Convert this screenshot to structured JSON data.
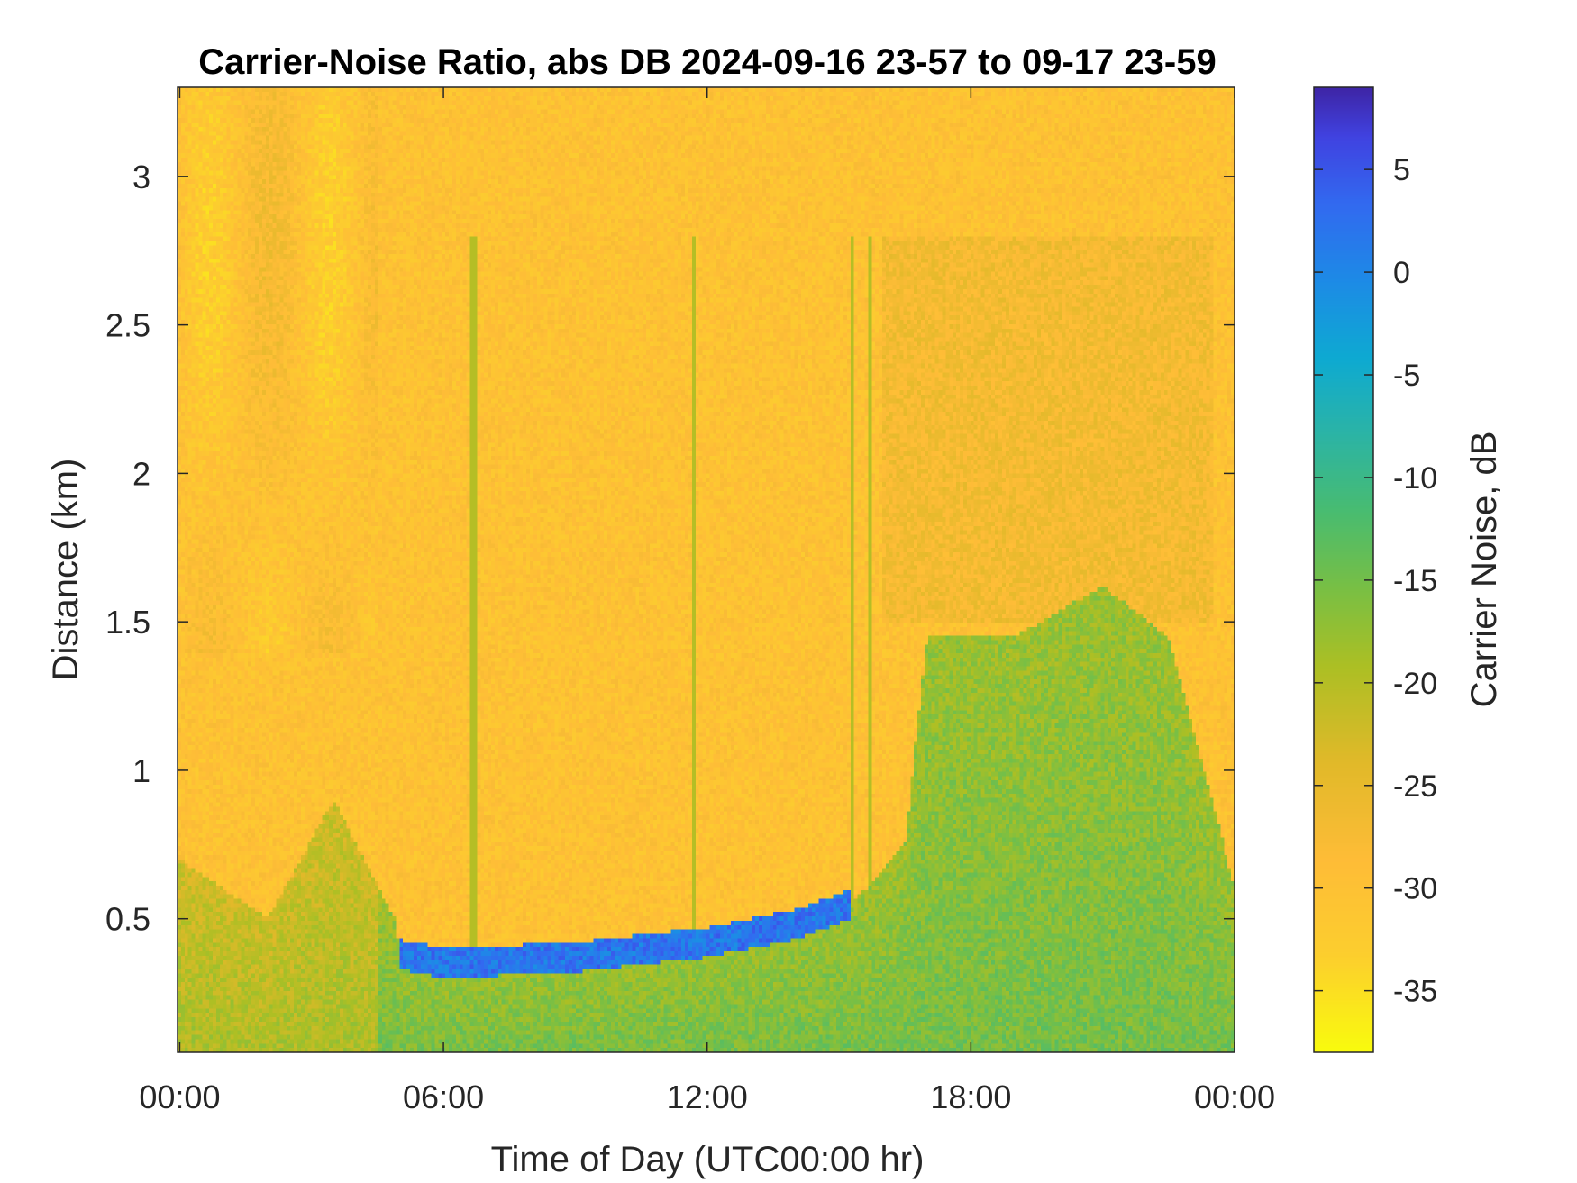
{
  "chart_data": {
    "type": "heatmap",
    "title": "Carrier-Noise Ratio, abs DB 2024-09-16 23-57 to 09-17 23-59",
    "xlabel": "Time of Day (UTC00:00 hr)",
    "ylabel": "Distance (km)",
    "colorbar_label": "Carrier Noise, dB",
    "x_ticks": [
      {
        "label": "00:00",
        "hours": 0
      },
      {
        "label": "06:00",
        "hours": 6
      },
      {
        "label": "12:00",
        "hours": 12
      },
      {
        "label": "18:00",
        "hours": 18
      },
      {
        "label": "00:00",
        "hours": 24
      }
    ],
    "y_ticks": [
      {
        "label": "0.5",
        "value": 0.5
      },
      {
        "label": "1",
        "value": 1.0
      },
      {
        "label": "1.5",
        "value": 1.5
      },
      {
        "label": "2",
        "value": 2.0
      },
      {
        "label": "2.5",
        "value": 2.5
      },
      {
        "label": "3",
        "value": 3.0
      }
    ],
    "xlim": [
      -0.05,
      24
    ],
    "ylim": [
      0.05,
      3.3
    ],
    "colorbar_ticks": [
      {
        "label": "5",
        "value": 5
      },
      {
        "label": "0",
        "value": 0
      },
      {
        "label": "-5",
        "value": -5
      },
      {
        "label": "-10",
        "value": -10
      },
      {
        "label": "-15",
        "value": -15
      },
      {
        "label": "-20",
        "value": -20
      },
      {
        "label": "-25",
        "value": -25
      },
      {
        "label": "-30",
        "value": -30
      },
      {
        "label": "-35",
        "value": -35
      }
    ],
    "clim": [
      -38,
      9
    ],
    "colormap": "parula",
    "grid": false,
    "description_values": {
      "background_level_db": -30,
      "boundary_layer_level_db": -15,
      "strong_return_layer_db": 5,
      "boundary_layer_top_km": [
        [
          0,
          0.7
        ],
        [
          2,
          0.5
        ],
        [
          3.5,
          0.9
        ],
        [
          4.9,
          0.5
        ],
        [
          5,
          0.38
        ],
        [
          6,
          0.35
        ],
        [
          9,
          0.37
        ],
        [
          12,
          0.42
        ],
        [
          14,
          0.48
        ],
        [
          15.3,
          0.55
        ],
        [
          16.5,
          0.75
        ],
        [
          17,
          1.45
        ],
        [
          19,
          1.45
        ],
        [
          21,
          1.62
        ],
        [
          22.5,
          1.45
        ],
        [
          23.5,
          0.9
        ],
        [
          24,
          0.6
        ]
      ]
    }
  }
}
